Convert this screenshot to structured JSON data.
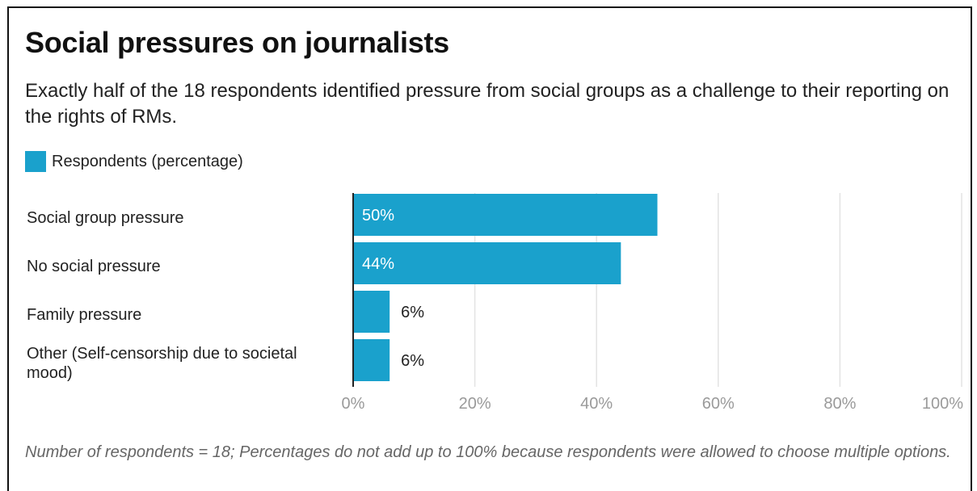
{
  "title": "Social pressures on journalists",
  "subtitle": "Exactly half of the 18 respondents identified pressure from social groups as a challenge to their reporting on the rights of RMs.",
  "legend": {
    "label": "Respondents (percentage)",
    "color": "#1aa1cc"
  },
  "footnote": "Number of respondents = 18; Percentages do not add up to 100% because respondents were allowed to choose multiple options.",
  "chart_data": {
    "type": "bar",
    "orientation": "horizontal",
    "categories": [
      "Social group pressure",
      "No social pressure",
      "Family pressure",
      "Other (Self-censorship due to societal mood)"
    ],
    "category_lines": [
      [
        "Social group pressure"
      ],
      [
        "No social pressure"
      ],
      [
        "Family pressure"
      ],
      [
        "Other (Self-censorship due to societal",
        "mood)"
      ]
    ],
    "series": [
      {
        "name": "Respondents (percentage)",
        "values": [
          50,
          44,
          6,
          6
        ],
        "color": "#1aa1cc"
      }
    ],
    "value_labels": [
      "50%",
      "44%",
      "6%",
      "6%"
    ],
    "xlim": [
      0,
      100
    ],
    "xticks": [
      0,
      20,
      40,
      60,
      80,
      100
    ],
    "xtick_labels": [
      "0%",
      "20%",
      "40%",
      "60%",
      "80%",
      "100%"
    ],
    "grid": true,
    "legend_position": "top-left"
  }
}
